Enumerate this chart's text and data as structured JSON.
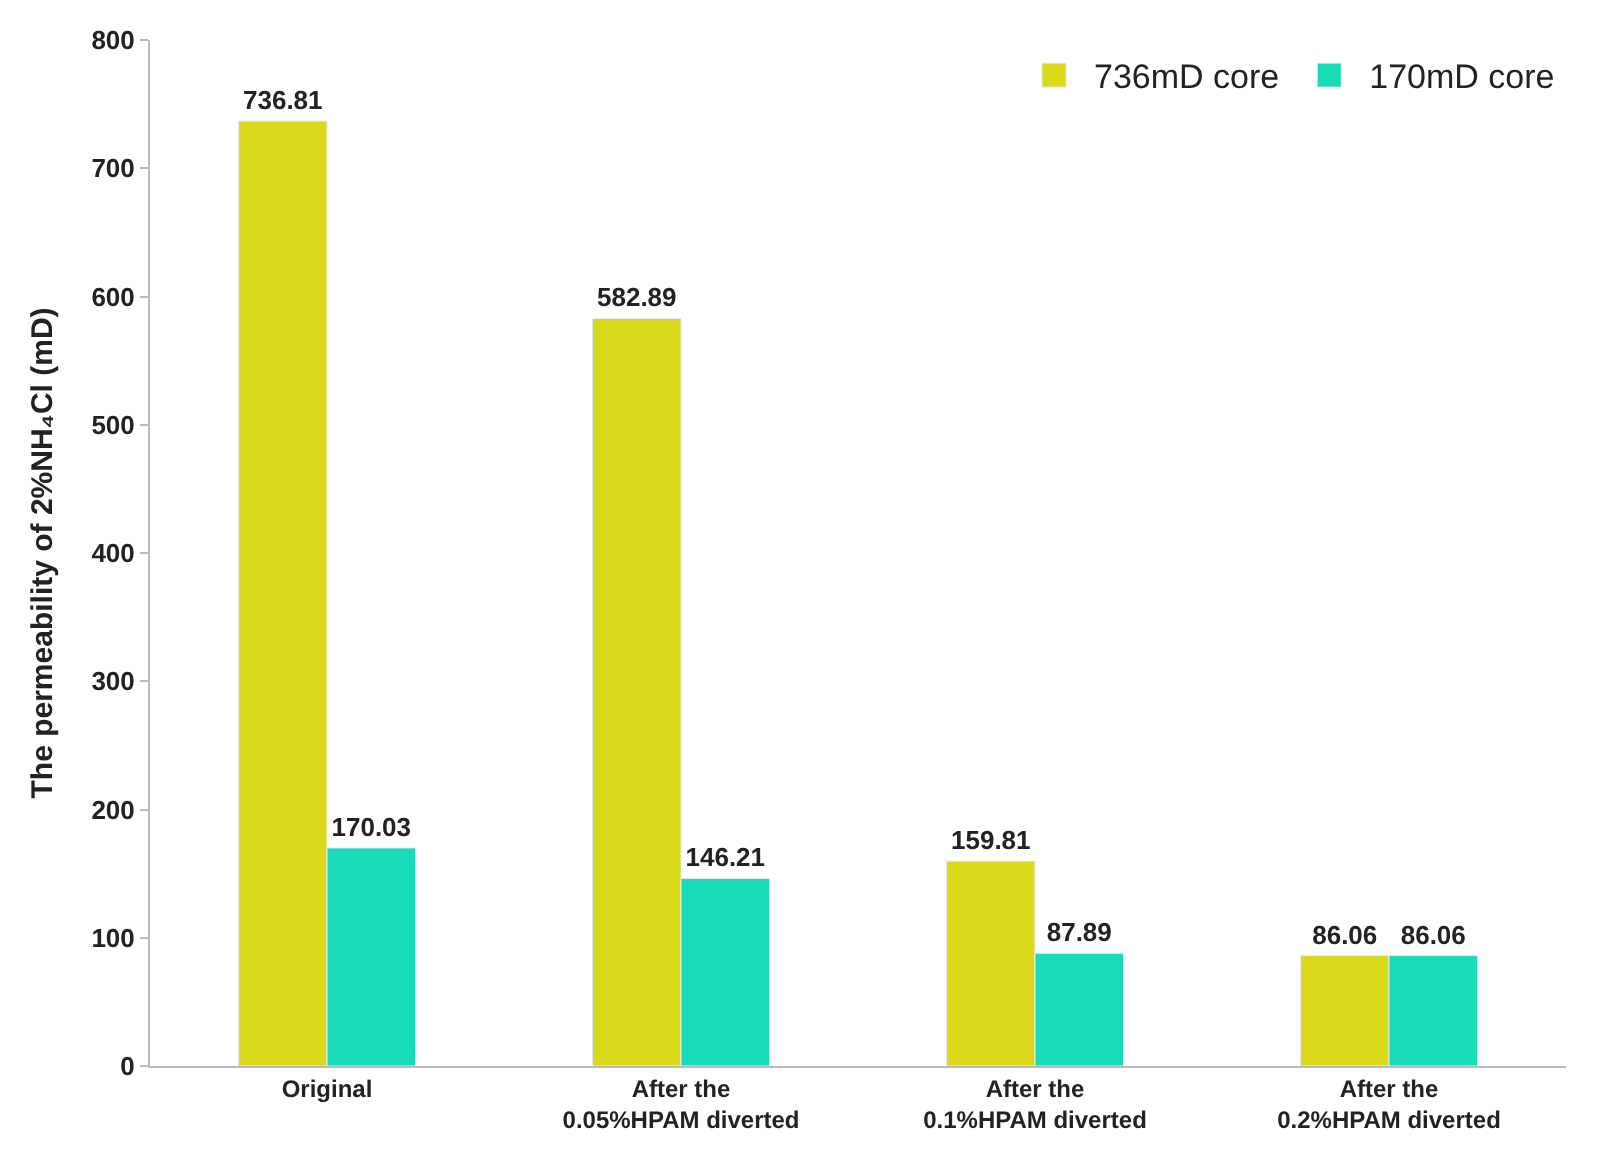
{
  "chart_data": {
    "type": "bar",
    "ylabel": "The permeability of 2%NH₄Cl (mD)",
    "categories": [
      "Original",
      "After the\n0.05%HPAM diverted",
      "After the\n0.1%HPAM diverted",
      "After the\n0.2%HPAM diverted"
    ],
    "series": [
      {
        "name": "736mD core",
        "color": "#d9d91a",
        "values": [
          736.81,
          582.89,
          159.81,
          86.06
        ]
      },
      {
        "name": "170mD core",
        "color": "#1adbb8",
        "values": [
          170.03,
          146.21,
          87.89,
          86.06
        ]
      }
    ],
    "ylim": [
      0,
      800
    ],
    "yticks": [
      0,
      100,
      200,
      300,
      400,
      500,
      600,
      700,
      800
    ],
    "grid": false,
    "legend": "top right",
    "data_labels": true
  }
}
